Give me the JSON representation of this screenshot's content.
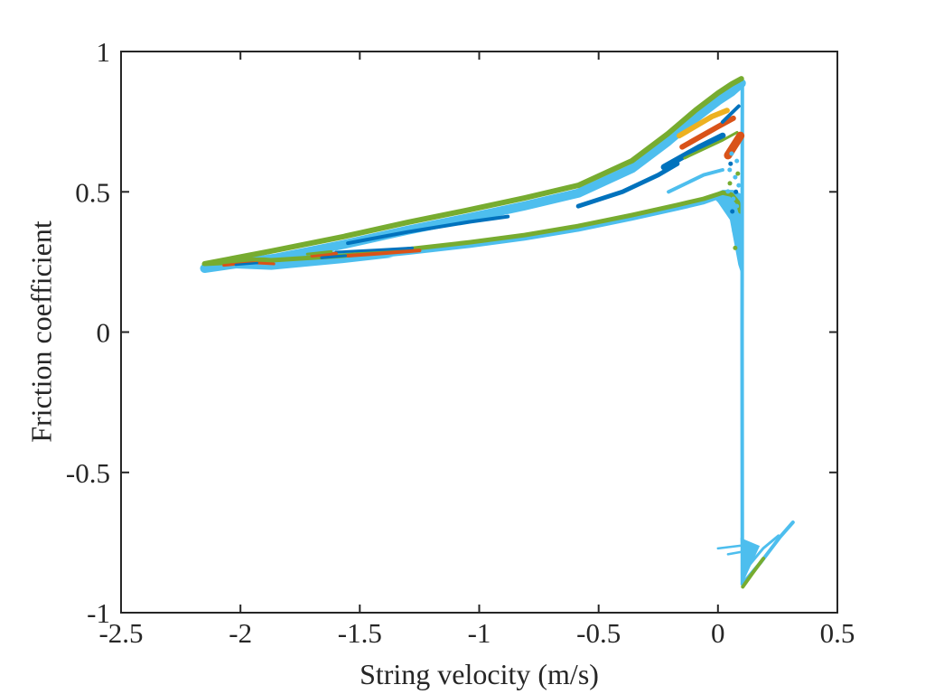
{
  "figure": {
    "background": "#ffffff"
  },
  "chart_data": {
    "type": "line",
    "title": "",
    "xlabel": "String velocity (m/s)",
    "ylabel": "Friction coefficient",
    "xlim": [
      -2.5,
      0.5
    ],
    "ylim": [
      -1,
      1
    ],
    "xticks": [
      -2.5,
      -2,
      -1.5,
      -1,
      -0.5,
      0,
      0.5
    ],
    "yticks": [
      -1,
      -0.5,
      0,
      0.5,
      1
    ],
    "grid": false,
    "legend_position": "none",
    "axis_color": "#262626",
    "tick_direction": "in",
    "palette": {
      "blue": "#0072BD",
      "orange": "#D95319",
      "yellow": "#EDB120",
      "green": "#77AC30",
      "cyan": "#4DBEEE"
    },
    "series": [
      {
        "name": "tip-fill",
        "type": "fill",
        "color": "#4DBEEE",
        "width": 0,
        "points": [
          [
            -2.152,
            0.242
          ],
          [
            -1.87,
            0.278
          ],
          [
            -1.57,
            0.289
          ],
          [
            -1.36,
            0.266
          ],
          [
            -1.57,
            0.246
          ],
          [
            -1.87,
            0.222
          ],
          [
            -2.05,
            0.228
          ],
          [
            -2.152,
            0.236
          ]
        ]
      },
      {
        "name": "right-column-fill",
        "type": "fill",
        "color": "#4DBEEE",
        "width": 0,
        "points": [
          [
            -0.03,
            0.488
          ],
          [
            0.019,
            0.507
          ],
          [
            0.064,
            0.507
          ],
          [
            0.098,
            0.492
          ],
          [
            0.108,
            0.45
          ],
          [
            0.108,
            0.18
          ],
          [
            0.085,
            0.24
          ],
          [
            0.05,
            0.4
          ],
          [
            0.0,
            0.462
          ]
        ]
      },
      {
        "name": "upper-band-cyan",
        "type": "line",
        "color": "#4DBEEE",
        "width": 10,
        "points": [
          [
            -2.15,
            0.227
          ],
          [
            -1.87,
            0.261
          ],
          [
            -1.57,
            0.312
          ],
          [
            -1.3,
            0.363
          ],
          [
            -1.04,
            0.408
          ],
          [
            -0.81,
            0.45
          ],
          [
            -0.585,
            0.495
          ],
          [
            -0.36,
            0.583
          ],
          [
            -0.21,
            0.679
          ],
          [
            -0.094,
            0.763
          ],
          [
            0.0,
            0.824
          ],
          [
            0.057,
            0.856
          ],
          [
            0.098,
            0.887
          ]
        ]
      },
      {
        "name": "upper-edge-green",
        "type": "line",
        "color": "#77AC30",
        "width": 6,
        "points": [
          [
            -2.15,
            0.243
          ],
          [
            -1.87,
            0.289
          ],
          [
            -1.57,
            0.34
          ],
          [
            -1.3,
            0.391
          ],
          [
            -1.04,
            0.436
          ],
          [
            -0.81,
            0.478
          ],
          [
            -0.585,
            0.523
          ],
          [
            -0.36,
            0.611
          ],
          [
            -0.21,
            0.707
          ],
          [
            -0.094,
            0.791
          ],
          [
            0.0,
            0.852
          ],
          [
            0.057,
            0.884
          ],
          [
            0.098,
            0.903
          ]
        ]
      },
      {
        "name": "lower-edge-cyan",
        "type": "line",
        "color": "#4DBEEE",
        "width": 5,
        "points": [
          [
            -2.15,
            0.231
          ],
          [
            -1.87,
            0.244
          ],
          [
            -1.57,
            0.26
          ],
          [
            -1.3,
            0.283
          ],
          [
            -1.04,
            0.308
          ],
          [
            -0.81,
            0.334
          ],
          [
            -0.585,
            0.366
          ],
          [
            -0.36,
            0.405
          ],
          [
            -0.17,
            0.441
          ],
          [
            -0.06,
            0.463
          ],
          [
            0.019,
            0.487
          ]
        ]
      },
      {
        "name": "lower-edge-green",
        "type": "line",
        "color": "#77AC30",
        "width": 5,
        "points": [
          [
            -2.15,
            0.243
          ],
          [
            -1.87,
            0.256
          ],
          [
            -1.57,
            0.272
          ],
          [
            -1.3,
            0.295
          ],
          [
            -1.04,
            0.32
          ],
          [
            -0.81,
            0.346
          ],
          [
            -0.585,
            0.378
          ],
          [
            -0.36,
            0.417
          ],
          [
            -0.17,
            0.453
          ],
          [
            -0.06,
            0.475
          ],
          [
            0.019,
            0.497
          ],
          [
            0.057,
            0.49
          ],
          [
            0.083,
            0.462
          ],
          [
            0.094,
            0.43
          ]
        ]
      },
      {
        "name": "stick-slip-vertical",
        "type": "line",
        "color": "#4DBEEE",
        "width": 4,
        "points": [
          [
            0.102,
            0.887
          ],
          [
            0.101,
            0.0
          ],
          [
            0.102,
            -0.894
          ]
        ]
      },
      {
        "name": "bottom-v-fill",
        "type": "fill",
        "color": "#4DBEEE",
        "width": 0,
        "points": [
          [
            0.094,
            -0.733
          ],
          [
            0.175,
            -0.762
          ],
          [
            0.102,
            -0.898
          ]
        ]
      },
      {
        "name": "tail-cyan-main",
        "type": "line",
        "color": "#4DBEEE",
        "width": 4,
        "points": [
          [
            0.102,
            -0.898
          ],
          [
            0.18,
            -0.82
          ],
          [
            0.26,
            -0.73
          ],
          [
            0.314,
            -0.678
          ]
        ]
      },
      {
        "name": "tail-cyan-upper",
        "type": "line",
        "color": "#4DBEEE",
        "width": 3,
        "points": [
          [
            0.102,
            -0.86
          ],
          [
            0.19,
            -0.77
          ],
          [
            0.253,
            -0.726
          ]
        ]
      },
      {
        "name": "tail-green",
        "type": "line",
        "color": "#77AC30",
        "width": 4,
        "points": [
          [
            0.104,
            -0.908
          ],
          [
            0.142,
            -0.862
          ],
          [
            0.19,
            -0.807
          ]
        ]
      },
      {
        "name": "tail-dash-1",
        "type": "line",
        "color": "#4DBEEE",
        "width": 2.5,
        "points": [
          [
            0.0,
            -0.771
          ],
          [
            0.125,
            -0.758
          ]
        ]
      },
      {
        "name": "tail-dash-2",
        "type": "line",
        "color": "#4DBEEE",
        "width": 2.5,
        "points": [
          [
            0.042,
            -0.792
          ],
          [
            0.113,
            -0.781
          ]
        ]
      },
      {
        "name": "mid-blue-streak",
        "type": "line",
        "color": "#0072BD",
        "width": 4,
        "points": [
          [
            -1.55,
            0.317
          ],
          [
            -1.3,
            0.357
          ],
          [
            -1.04,
            0.393
          ],
          [
            -0.88,
            0.412
          ]
        ]
      },
      {
        "name": "mid-orange-streak",
        "type": "line",
        "color": "#D95319",
        "width": 4,
        "points": [
          [
            -1.55,
            0.272
          ],
          [
            -1.42,
            0.28
          ],
          [
            -1.25,
            0.291
          ]
        ]
      },
      {
        "name": "mid-blue-thin",
        "type": "line",
        "color": "#0072BD",
        "width": 3,
        "points": [
          [
            -1.6,
            0.285
          ],
          [
            -1.42,
            0.293
          ],
          [
            -1.28,
            0.3
          ]
        ]
      },
      {
        "name": "band-blue-right",
        "type": "line",
        "color": "#0072BD",
        "width": 5,
        "points": [
          [
            -0.585,
            0.449
          ],
          [
            -0.4,
            0.5
          ],
          [
            -0.25,
            0.56
          ],
          [
            -0.17,
            0.6
          ]
        ]
      },
      {
        "name": "peak-cyan-wisp",
        "type": "line",
        "color": "#4DBEEE",
        "width": 4,
        "points": [
          [
            -0.207,
            0.5
          ],
          [
            -0.06,
            0.56
          ],
          [
            0.019,
            0.578
          ]
        ]
      },
      {
        "name": "peak-blue-streak",
        "type": "line",
        "color": "#0072BD",
        "width": 7,
        "points": [
          [
            -0.226,
            0.588
          ],
          [
            -0.075,
            0.66
          ],
          [
            0.019,
            0.7
          ]
        ]
      },
      {
        "name": "peak-green-inner",
        "type": "line",
        "color": "#77AC30",
        "width": 3,
        "points": [
          [
            -0.14,
            0.62
          ],
          [
            0.02,
            0.684
          ],
          [
            0.08,
            0.712
          ]
        ]
      },
      {
        "name": "peak-orange-streak",
        "type": "line",
        "color": "#D95319",
        "width": 6,
        "points": [
          [
            -0.15,
            0.66
          ],
          [
            0.0,
            0.732
          ],
          [
            0.064,
            0.762
          ]
        ]
      },
      {
        "name": "peak-yellow-streak",
        "type": "line",
        "color": "#EDB120",
        "width": 6,
        "points": [
          [
            -0.162,
            0.7
          ],
          [
            -0.026,
            0.768
          ],
          [
            0.038,
            0.79
          ]
        ]
      },
      {
        "name": "peak-blue-short",
        "type": "line",
        "color": "#0072BD",
        "width": 4,
        "points": [
          [
            0.019,
            0.749
          ],
          [
            0.087,
            0.805
          ]
        ]
      },
      {
        "name": "peak-orange-blob",
        "type": "line",
        "color": "#D95319",
        "width": 9,
        "points": [
          [
            0.042,
            0.63
          ],
          [
            0.094,
            0.7
          ]
        ]
      },
      {
        "name": "tip-loop-green",
        "type": "line",
        "color": "#77AC30",
        "width": 2.5,
        "points": [
          [
            -2.12,
            0.252
          ],
          [
            -2.02,
            0.262
          ],
          [
            -1.9,
            0.262
          ],
          [
            -1.82,
            0.256
          ],
          [
            -1.92,
            0.247
          ],
          [
            -2.04,
            0.243
          ],
          [
            -2.12,
            0.252
          ]
        ]
      },
      {
        "name": "tip-orange",
        "type": "line",
        "color": "#D95319",
        "width": 3,
        "points": [
          [
            -2.07,
            0.238
          ],
          [
            -1.95,
            0.247
          ],
          [
            -1.86,
            0.243
          ]
        ]
      },
      {
        "name": "tip-blue-dash",
        "type": "line",
        "color": "#0072BD",
        "width": 2.5,
        "points": [
          [
            -2.02,
            0.24
          ],
          [
            -1.93,
            0.246
          ]
        ]
      },
      {
        "name": "tip-cluster-orange",
        "type": "line",
        "color": "#D95319",
        "width": 4,
        "points": [
          [
            -1.7,
            0.272
          ],
          [
            -1.6,
            0.28
          ]
        ]
      },
      {
        "name": "tip-cluster-blue",
        "type": "line",
        "color": "#0072BD",
        "width": 3,
        "points": [
          [
            -1.66,
            0.265
          ],
          [
            -1.56,
            0.272
          ]
        ]
      },
      {
        "name": "tip-cluster-green",
        "type": "line",
        "color": "#77AC30",
        "width": 3,
        "points": [
          [
            -1.72,
            0.278
          ],
          [
            -1.62,
            0.287
          ]
        ]
      },
      {
        "name": "transition-dashes-cyan",
        "type": "dots",
        "color": "#4DBEEE",
        "width": 2.5,
        "points": [
          [
            0.057,
            0.636
          ],
          [
            0.079,
            0.61
          ],
          [
            0.049,
            0.578
          ],
          [
            0.072,
            0.552
          ],
          [
            0.087,
            0.523
          ],
          [
            0.042,
            0.501
          ],
          [
            0.064,
            0.475
          ],
          [
            0.079,
            0.449
          ],
          [
            0.057,
            0.417
          ],
          [
            0.076,
            0.391
          ],
          [
            0.068,
            0.36
          ],
          [
            0.079,
            0.33
          ]
        ]
      },
      {
        "name": "transition-dashes-blue",
        "type": "dots",
        "color": "#0072BD",
        "width": 2.5,
        "points": [
          [
            0.053,
            0.6
          ],
          [
            0.075,
            0.5
          ],
          [
            0.06,
            0.43
          ]
        ]
      },
      {
        "name": "transition-dashes-green",
        "type": "dots",
        "color": "#77AC30",
        "width": 2.5,
        "points": [
          [
            0.083,
            0.565
          ],
          [
            0.05,
            0.53
          ],
          [
            0.072,
            0.3
          ]
        ]
      }
    ]
  }
}
